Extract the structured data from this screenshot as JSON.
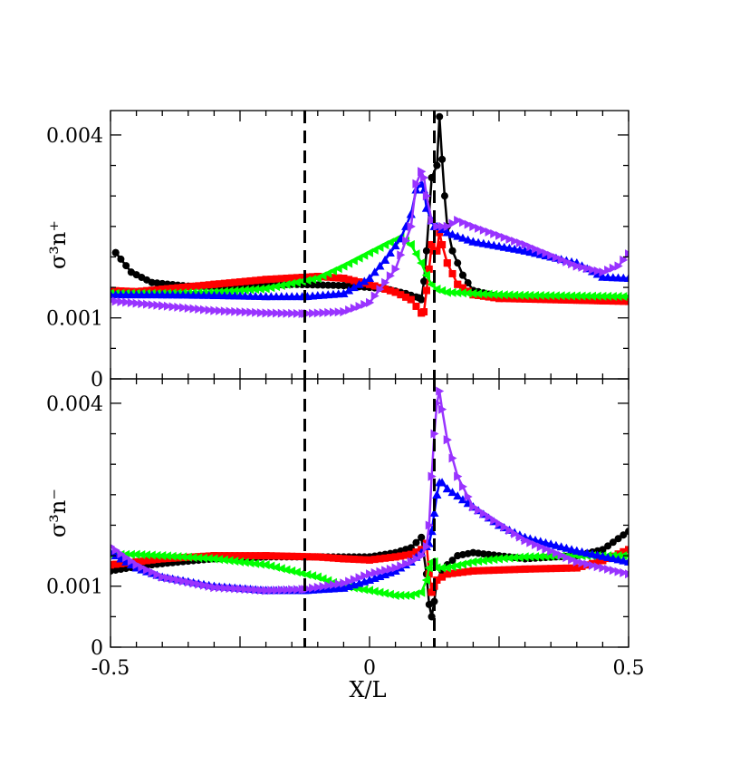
{
  "chart_data": [
    {
      "type": "line",
      "panel": "top",
      "ylabel": "σ³n⁺",
      "xlim": [
        -0.5,
        0.5
      ],
      "ylim": [
        0,
        0.0044
      ],
      "yticks": [
        {
          "value": 0,
          "label": "0"
        },
        {
          "value": 0.001,
          "label": "0.001"
        },
        {
          "value": 0.004,
          "label": "0.004"
        }
      ],
      "vlines": [
        -0.125,
        0.125
      ],
      "series": [
        {
          "color": "#000000",
          "marker": "circle",
          "x": [
            -0.49,
            -0.46,
            -0.42,
            -0.35,
            -0.25,
            -0.15,
            -0.05,
            0.03,
            0.07,
            0.095,
            0.1,
            0.105,
            0.11,
            0.12,
            0.13,
            0.135,
            0.14,
            0.145,
            0.15,
            0.16,
            0.18,
            0.2,
            0.25,
            0.35,
            0.45,
            0.5
          ],
          "y": [
            0.00207,
            0.00175,
            0.00158,
            0.00152,
            0.00152,
            0.00155,
            0.00153,
            0.00148,
            0.0014,
            0.00133,
            0.0013,
            0.0016,
            0.0021,
            0.0033,
            0.0035,
            0.0043,
            0.0036,
            0.003,
            0.0025,
            0.0021,
            0.0017,
            0.00145,
            0.00135,
            0.0013,
            0.00128,
            0.00128
          ]
        },
        {
          "color": "#ff0000",
          "marker": "square",
          "x": [
            -0.5,
            -0.45,
            -0.4,
            -0.3,
            -0.2,
            -0.1,
            -0.05,
            0,
            0.05,
            0.08,
            0.1,
            0.105,
            0.11,
            0.115,
            0.12,
            0.125,
            0.13,
            0.135,
            0.14,
            0.15,
            0.17,
            0.2,
            0.25,
            0.35,
            0.45,
            0.5
          ],
          "y": [
            0.00145,
            0.00143,
            0.00147,
            0.00155,
            0.00163,
            0.00168,
            0.00165,
            0.00155,
            0.00142,
            0.0013,
            0.00108,
            0.0011,
            0.00145,
            0.0018,
            0.0022,
            0.0021,
            0.0021,
            0.0024,
            0.0022,
            0.0019,
            0.00155,
            0.00138,
            0.00132,
            0.0013,
            0.00128,
            0.00127
          ]
        },
        {
          "color": "#00ff00",
          "marker": "triangle-left",
          "x": [
            -0.5,
            -0.4,
            -0.3,
            -0.2,
            -0.1,
            -0.05,
            0,
            0.03,
            0.06,
            0.08,
            0.1,
            0.11,
            0.12,
            0.13,
            0.15,
            0.2,
            0.25,
            0.3,
            0.4,
            0.5
          ],
          "y": [
            0.0014,
            0.0014,
            0.00142,
            0.00148,
            0.00165,
            0.00185,
            0.00207,
            0.0022,
            0.00232,
            0.0022,
            0.0019,
            0.0017,
            0.00155,
            0.00147,
            0.00142,
            0.0014,
            0.00138,
            0.00137,
            0.00136,
            0.00135
          ]
        },
        {
          "color": "#0000ff",
          "marker": "triangle-up",
          "x": [
            -0.5,
            -0.4,
            -0.3,
            -0.2,
            -0.125,
            -0.05,
            0,
            0.03,
            0.06,
            0.08,
            0.09,
            0.1,
            0.105,
            0.11,
            0.12,
            0.125,
            0.13,
            0.15,
            0.2,
            0.3,
            0.4,
            0.45,
            0.5
          ],
          "y": [
            0.00138,
            0.00138,
            0.00137,
            0.00135,
            0.00135,
            0.0014,
            0.00165,
            0.00195,
            0.0023,
            0.0027,
            0.0031,
            0.0032,
            0.0031,
            0.0028,
            0.0026,
            0.0025,
            0.0025,
            0.0024,
            0.00225,
            0.0021,
            0.0019,
            0.00167,
            0.00165
          ]
        },
        {
          "color": "#9933ff",
          "marker": "triangle-right",
          "x": [
            -0.5,
            -0.4,
            -0.3,
            -0.2,
            -0.125,
            -0.05,
            0,
            0.05,
            0.08,
            0.09,
            0.1,
            0.105,
            0.11,
            0.12,
            0.13,
            0.15,
            0.17,
            0.2,
            0.3,
            0.4,
            0.45,
            0.48,
            0.5
          ],
          "y": [
            0.00128,
            0.0012,
            0.00112,
            0.00108,
            0.00107,
            0.0011,
            0.00125,
            0.0018,
            0.0025,
            0.0032,
            0.0034,
            0.0033,
            0.003,
            0.0026,
            0.0025,
            0.0025,
            0.0026,
            0.0025,
            0.0022,
            0.00185,
            0.00175,
            0.00185,
            0.00205
          ]
        }
      ]
    },
    {
      "type": "line",
      "panel": "bottom",
      "ylabel": "σ³n⁻",
      "xlabel": "X/L",
      "xlim": [
        -0.5,
        0.5
      ],
      "ylim": [
        0,
        0.0044
      ],
      "xticks": [
        {
          "value": -0.5,
          "label": "-0.5"
        },
        {
          "value": 0,
          "label": "0"
        },
        {
          "value": 0.5,
          "label": "0.5"
        }
      ],
      "yticks": [
        {
          "value": 0,
          "label": "0"
        },
        {
          "value": 0.001,
          "label": "0.001"
        },
        {
          "value": 0.004,
          "label": "0.004"
        }
      ],
      "vlines": [
        -0.125,
        0.125
      ],
      "series": [
        {
          "color": "#000000",
          "marker": "circle",
          "x": [
            -0.5,
            -0.45,
            -0.4,
            -0.3,
            -0.2,
            -0.1,
            0,
            0.05,
            0.08,
            0.1,
            0.11,
            0.115,
            0.12,
            0.125,
            0.13,
            0.14,
            0.15,
            0.17,
            0.2,
            0.3,
            0.4,
            0.45,
            0.5
          ],
          "y": [
            0.00125,
            0.00132,
            0.00137,
            0.00145,
            0.00148,
            0.00148,
            0.00148,
            0.00155,
            0.00163,
            0.0018,
            0.0012,
            0.0007,
            0.0005,
            0.00075,
            0.0011,
            0.00125,
            0.00135,
            0.0015,
            0.00155,
            0.00145,
            0.0015,
            0.0016,
            0.0019
          ]
        },
        {
          "color": "#ff0000",
          "marker": "square",
          "x": [
            -0.5,
            -0.45,
            -0.4,
            -0.3,
            -0.2,
            -0.1,
            -0.05,
            0,
            0.05,
            0.08,
            0.1,
            0.11,
            0.115,
            0.12,
            0.125,
            0.13,
            0.15,
            0.2,
            0.3,
            0.4,
            0.45,
            0.5
          ],
          "y": [
            0.00135,
            0.0014,
            0.00145,
            0.0015,
            0.0015,
            0.00148,
            0.00145,
            0.00143,
            0.00148,
            0.00152,
            0.0016,
            0.0017,
            0.0012,
            0.0009,
            0.001,
            0.0011,
            0.0012,
            0.00125,
            0.00128,
            0.0013,
            0.00142,
            0.0016
          ]
        },
        {
          "color": "#00ff00",
          "marker": "triangle-left",
          "x": [
            -0.5,
            -0.45,
            -0.4,
            -0.3,
            -0.2,
            -0.1,
            -0.05,
            0,
            0.05,
            0.08,
            0.1,
            0.11,
            0.115,
            0.12,
            0.125,
            0.13,
            0.15,
            0.2,
            0.25,
            0.3,
            0.4,
            0.5
          ],
          "y": [
            0.00152,
            0.00152,
            0.0015,
            0.00145,
            0.00135,
            0.00115,
            0.001,
            0.00093,
            0.00085,
            0.00085,
            0.0009,
            0.0011,
            0.0013,
            0.0014,
            0.0014,
            0.0013,
            0.0013,
            0.0014,
            0.00145,
            0.00148,
            0.0015,
            0.0015
          ]
        },
        {
          "color": "#0000ff",
          "marker": "triangle-up",
          "x": [
            -0.5,
            -0.45,
            -0.4,
            -0.3,
            -0.2,
            -0.125,
            -0.05,
            0,
            0.05,
            0.08,
            0.1,
            0.115,
            0.12,
            0.125,
            0.13,
            0.135,
            0.14,
            0.15,
            0.2,
            0.25,
            0.3,
            0.4,
            0.5
          ],
          "y": [
            0.00155,
            0.0013,
            0.00115,
            0.001,
            0.00093,
            0.00093,
            0.00097,
            0.0011,
            0.00125,
            0.0014,
            0.00155,
            0.0017,
            0.0019,
            0.0022,
            0.0025,
            0.0027,
            0.0027,
            0.0026,
            0.0023,
            0.002,
            0.0018,
            0.00158,
            0.0014
          ]
        },
        {
          "color": "#9933ff",
          "marker": "triangle-right",
          "x": [
            -0.5,
            -0.45,
            -0.4,
            -0.3,
            -0.2,
            -0.125,
            -0.05,
            0,
            0.05,
            0.08,
            0.1,
            0.11,
            0.115,
            0.12,
            0.125,
            0.13,
            0.135,
            0.14,
            0.15,
            0.17,
            0.2,
            0.3,
            0.4,
            0.5
          ],
          "y": [
            0.00165,
            0.00135,
            0.00115,
            0.00098,
            0.00093,
            0.00095,
            0.00105,
            0.0012,
            0.0013,
            0.0014,
            0.0015,
            0.00165,
            0.002,
            0.0028,
            0.0035,
            0.004,
            0.0042,
            0.0039,
            0.0034,
            0.0028,
            0.0023,
            0.00175,
            0.0014,
            0.0012
          ]
        }
      ]
    }
  ]
}
